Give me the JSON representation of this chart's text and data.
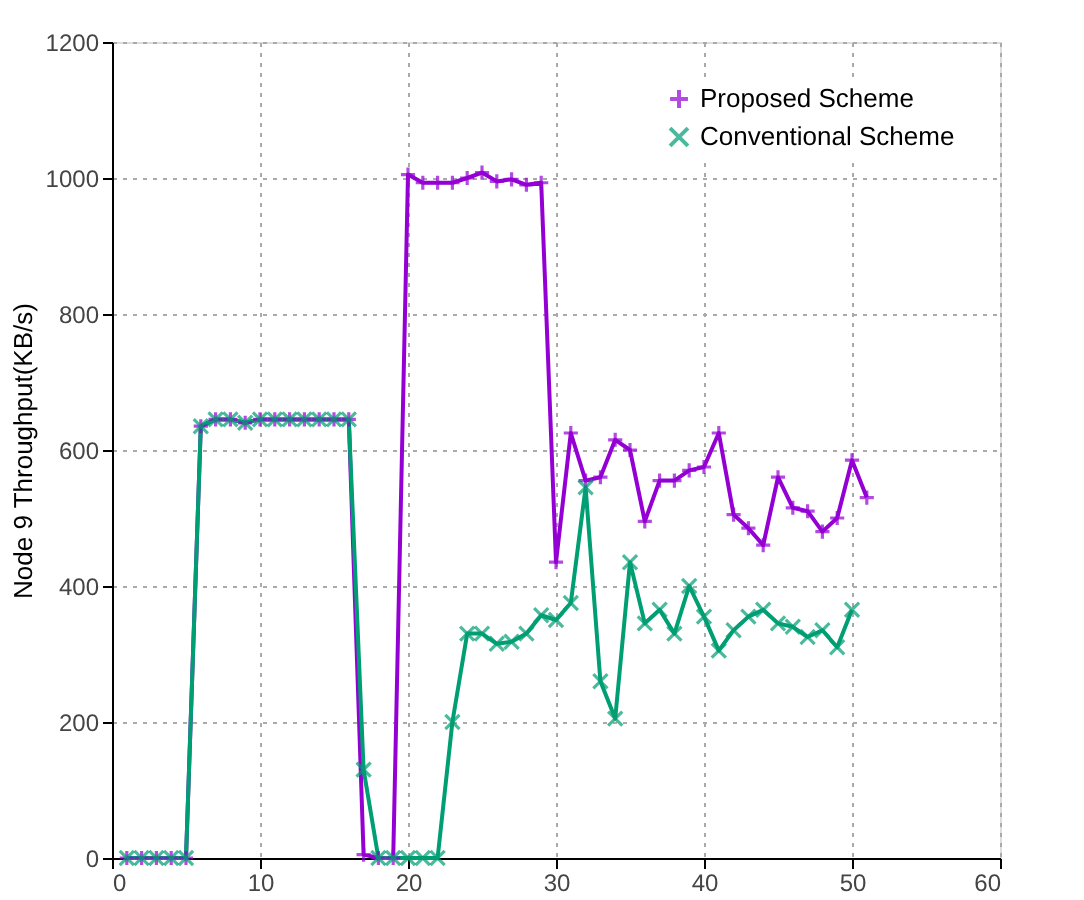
{
  "chart_data": {
    "type": "line",
    "ylabel": "Node 9 Throughput(KB/s)",
    "x": [
      1,
      2,
      3,
      4,
      5,
      6,
      7,
      8,
      9,
      10,
      11,
      12,
      13,
      14,
      15,
      16,
      17,
      18,
      19,
      20,
      21,
      22,
      23,
      24,
      25,
      26,
      27,
      28,
      29,
      30,
      31,
      32,
      33,
      34,
      35,
      36,
      37,
      38,
      39,
      40,
      41,
      42,
      43,
      44,
      45,
      46,
      47,
      48,
      49,
      50,
      51
    ],
    "series": [
      {
        "name": "Proposed Scheme",
        "color": "#9400d3",
        "marker": "cross",
        "values": [
          0,
          0,
          0,
          0,
          0,
          635,
          645,
          645,
          640,
          645,
          645,
          645,
          645,
          645,
          645,
          645,
          5,
          0,
          0,
          1005,
          993,
          993,
          993,
          1000,
          1008,
          995,
          998,
          990,
          993,
          435,
          625,
          555,
          560,
          615,
          600,
          495,
          555,
          555,
          570,
          575,
          625,
          505,
          485,
          460,
          560,
          515,
          510,
          480,
          500,
          585,
          530
        ]
      },
      {
        "name": "Conventional Scheme",
        "color": "#009e73",
        "marker": "cross",
        "values": [
          0,
          0,
          0,
          0,
          0,
          635,
          645,
          645,
          640,
          645,
          645,
          645,
          645,
          645,
          645,
          645,
          130,
          0,
          0,
          0,
          0,
          0,
          200,
          330,
          330,
          315,
          318,
          330,
          357,
          350,
          375,
          545,
          260,
          205,
          435,
          345,
          365,
          330,
          400,
          355,
          305,
          335,
          355,
          365,
          345,
          340,
          325,
          335,
          310,
          365,
          null
        ]
      }
    ],
    "xlim": [
      0,
      60
    ],
    "xticks": [
      0,
      10,
      20,
      30,
      40,
      50,
      60
    ],
    "ylim": [
      0,
      1200
    ],
    "yticks": [
      0,
      200,
      400,
      600,
      800,
      1000,
      1200
    ],
    "grid": true,
    "legend": "top right",
    "line_style": "solid"
  }
}
